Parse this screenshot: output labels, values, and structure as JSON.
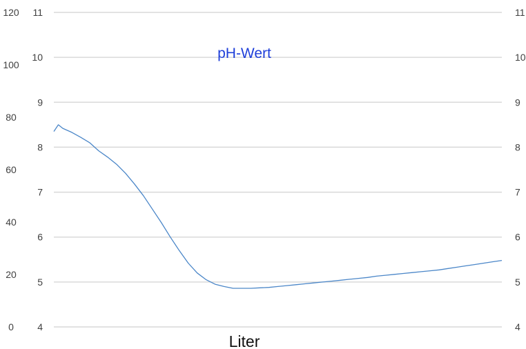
{
  "chart_data": {
    "type": "line",
    "title": "pH-Wert",
    "xlabel": "Liter",
    "ylabel": "",
    "y_left_outer": {
      "range": [
        0,
        120
      ],
      "ticks": [
        "0",
        "20",
        "40",
        "60",
        "80",
        "100",
        "120"
      ]
    },
    "y_left_inner": {
      "range": [
        4,
        11
      ],
      "ticks": [
        "4",
        "5",
        "6",
        "7",
        "8",
        "9",
        "10",
        "11"
      ]
    },
    "y_right": {
      "range": [
        4,
        11
      ],
      "ticks": [
        "4",
        "5",
        "6",
        "7",
        "8",
        "9",
        "10",
        "11"
      ]
    },
    "grid": true,
    "legend": "none",
    "colors": {
      "series": "#4a86c8",
      "title": "#1f3fd9",
      "grid": "#d9d9d9",
      "tick": "#404040"
    },
    "series": [
      {
        "axis": "y_inner",
        "x": [
          0,
          1,
          2,
          4,
          6,
          8,
          10,
          12,
          14,
          16,
          18,
          20,
          22,
          24,
          26,
          28,
          30,
          32,
          34,
          36,
          38,
          40,
          42,
          44,
          46,
          48,
          50,
          52,
          54,
          56,
          58,
          60,
          62,
          64,
          66,
          68,
          70,
          72,
          74,
          76,
          78,
          80,
          82,
          84,
          86,
          88,
          90,
          92,
          94,
          96,
          98,
          100
        ],
        "y": [
          8.35,
          8.5,
          8.42,
          8.33,
          8.22,
          8.1,
          7.92,
          7.78,
          7.62,
          7.42,
          7.18,
          6.92,
          6.62,
          6.32,
          6.0,
          5.7,
          5.42,
          5.2,
          5.05,
          4.95,
          4.9,
          4.86,
          4.86,
          4.86,
          4.87,
          4.88,
          4.9,
          4.92,
          4.94,
          4.96,
          4.98,
          5.0,
          5.02,
          5.04,
          5.06,
          5.08,
          5.1,
          5.13,
          5.15,
          5.17,
          5.19,
          5.21,
          5.23,
          5.25,
          5.27,
          5.3,
          5.33,
          5.36,
          5.39,
          5.42,
          5.45,
          5.48
        ]
      }
    ]
  }
}
